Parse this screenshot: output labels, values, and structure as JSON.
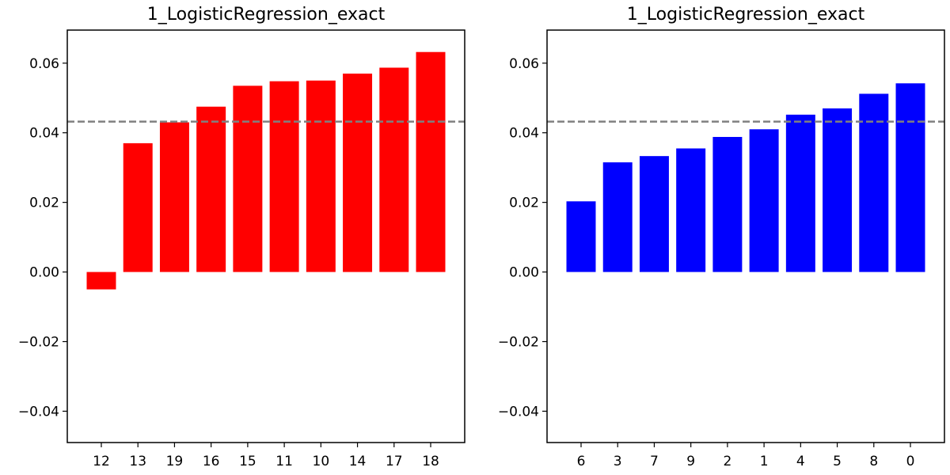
{
  "chart_data": [
    {
      "type": "bar",
      "title": "1_LogisticRegression_exact",
      "xlabel": "",
      "ylabel": "",
      "categories": [
        "12",
        "13",
        "19",
        "16",
        "15",
        "11",
        "10",
        "14",
        "17",
        "18"
      ],
      "values": [
        -0.005,
        0.037,
        0.043,
        0.0475,
        0.0535,
        0.0548,
        0.055,
        0.057,
        0.0587,
        0.0632
      ],
      "bar_color": "#ff0000",
      "reference_line": {
        "y": 0.0432,
        "style": "dashed",
        "color": "#808080"
      },
      "ylim": [
        -0.049,
        0.0695
      ],
      "yticks": [
        -0.04,
        -0.02,
        0.0,
        0.02,
        0.04,
        0.06
      ],
      "ytick_labels": [
        "−0.04",
        "−0.02",
        "0.00",
        "0.02",
        "0.04",
        "0.06"
      ],
      "grid": false,
      "legend": false
    },
    {
      "type": "bar",
      "title": "1_LogisticRegression_exact",
      "xlabel": "",
      "ylabel": "",
      "categories": [
        "6",
        "3",
        "7",
        "9",
        "2",
        "1",
        "4",
        "5",
        "8",
        "0"
      ],
      "values": [
        0.0203,
        0.0315,
        0.0333,
        0.0355,
        0.0388,
        0.041,
        0.0452,
        0.047,
        0.0512,
        0.0542
      ],
      "bar_color": "#0000ff",
      "reference_line": {
        "y": 0.0432,
        "style": "dashed",
        "color": "#808080"
      },
      "ylim": [
        -0.049,
        0.0695
      ],
      "yticks": [
        -0.04,
        -0.02,
        0.0,
        0.02,
        0.04,
        0.06
      ],
      "ytick_labels": [
        "−0.04",
        "−0.02",
        "0.00",
        "0.02",
        "0.04",
        "0.06"
      ],
      "grid": false,
      "legend": false
    }
  ]
}
